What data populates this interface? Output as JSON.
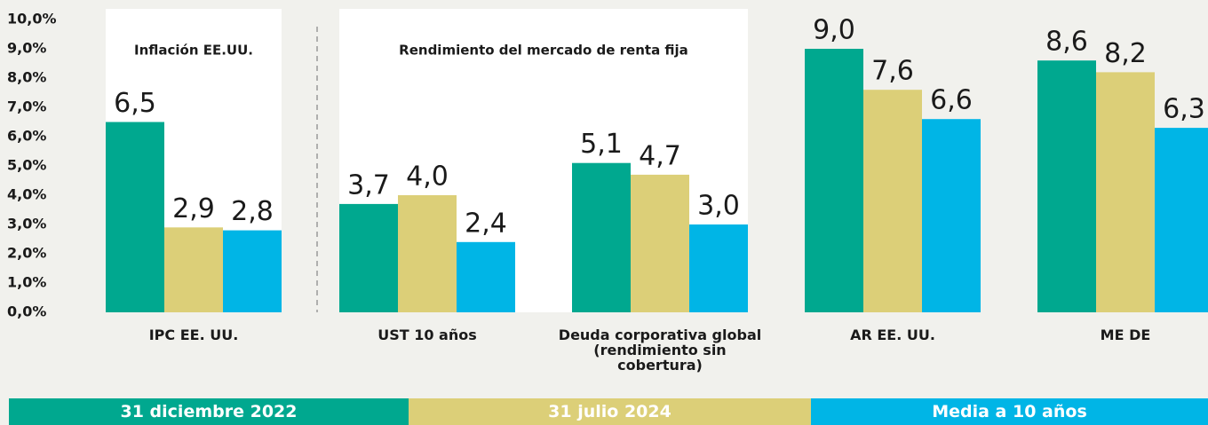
{
  "chart_data": {
    "type": "bar",
    "categories": [
      "IPC EE. UU.",
      "UST 10 años",
      "Deuda corporativa global (rendimiento sin cobertura)",
      "AR EE. UU.",
      "ME DE"
    ],
    "series": [
      {
        "name": "31 diciembre 2022",
        "color": "#00a88f",
        "values": [
          6.5,
          3.7,
          5.1,
          9.0,
          8.6
        ],
        "value_labels": [
          "6,5",
          "3,7",
          "5,1",
          "9,0",
          "8,6"
        ]
      },
      {
        "name": "31 julio 2024",
        "color": "#dccf78",
        "values": [
          2.9,
          4.0,
          4.7,
          7.6,
          8.2
        ],
        "value_labels": [
          "2,9",
          "4,0",
          "4,7",
          "7,6",
          "8,2"
        ]
      },
      {
        "name": "Media a 10 años",
        "color": "#00b5e6",
        "values": [
          2.8,
          2.4,
          3.0,
          6.6,
          6.3
        ],
        "value_labels": [
          "2,8",
          "2,4",
          "3,0",
          "6,6",
          "6,3"
        ]
      }
    ],
    "annotations": [
      "Inflación EE.UU.",
      "Rendimiento del mercado de renta fija"
    ],
    "ylim": [
      0,
      10
    ],
    "yticks": [
      {
        "value": 0,
        "label": "0,0%"
      },
      {
        "value": 1,
        "label": "1,0%"
      },
      {
        "value": 2,
        "label": "2,0%"
      },
      {
        "value": 3,
        "label": "3,0%"
      },
      {
        "value": 4,
        "label": "4,0%"
      },
      {
        "value": 5,
        "label": "5,0%"
      },
      {
        "value": 6,
        "label": "6,0%"
      },
      {
        "value": 7,
        "label": "7,0%"
      },
      {
        "value": 8,
        "label": "8,0%"
      },
      {
        "value": 9,
        "label": "9,0%"
      },
      {
        "value": 10,
        "label": "10,0%"
      }
    ],
    "legend": "bottom"
  }
}
